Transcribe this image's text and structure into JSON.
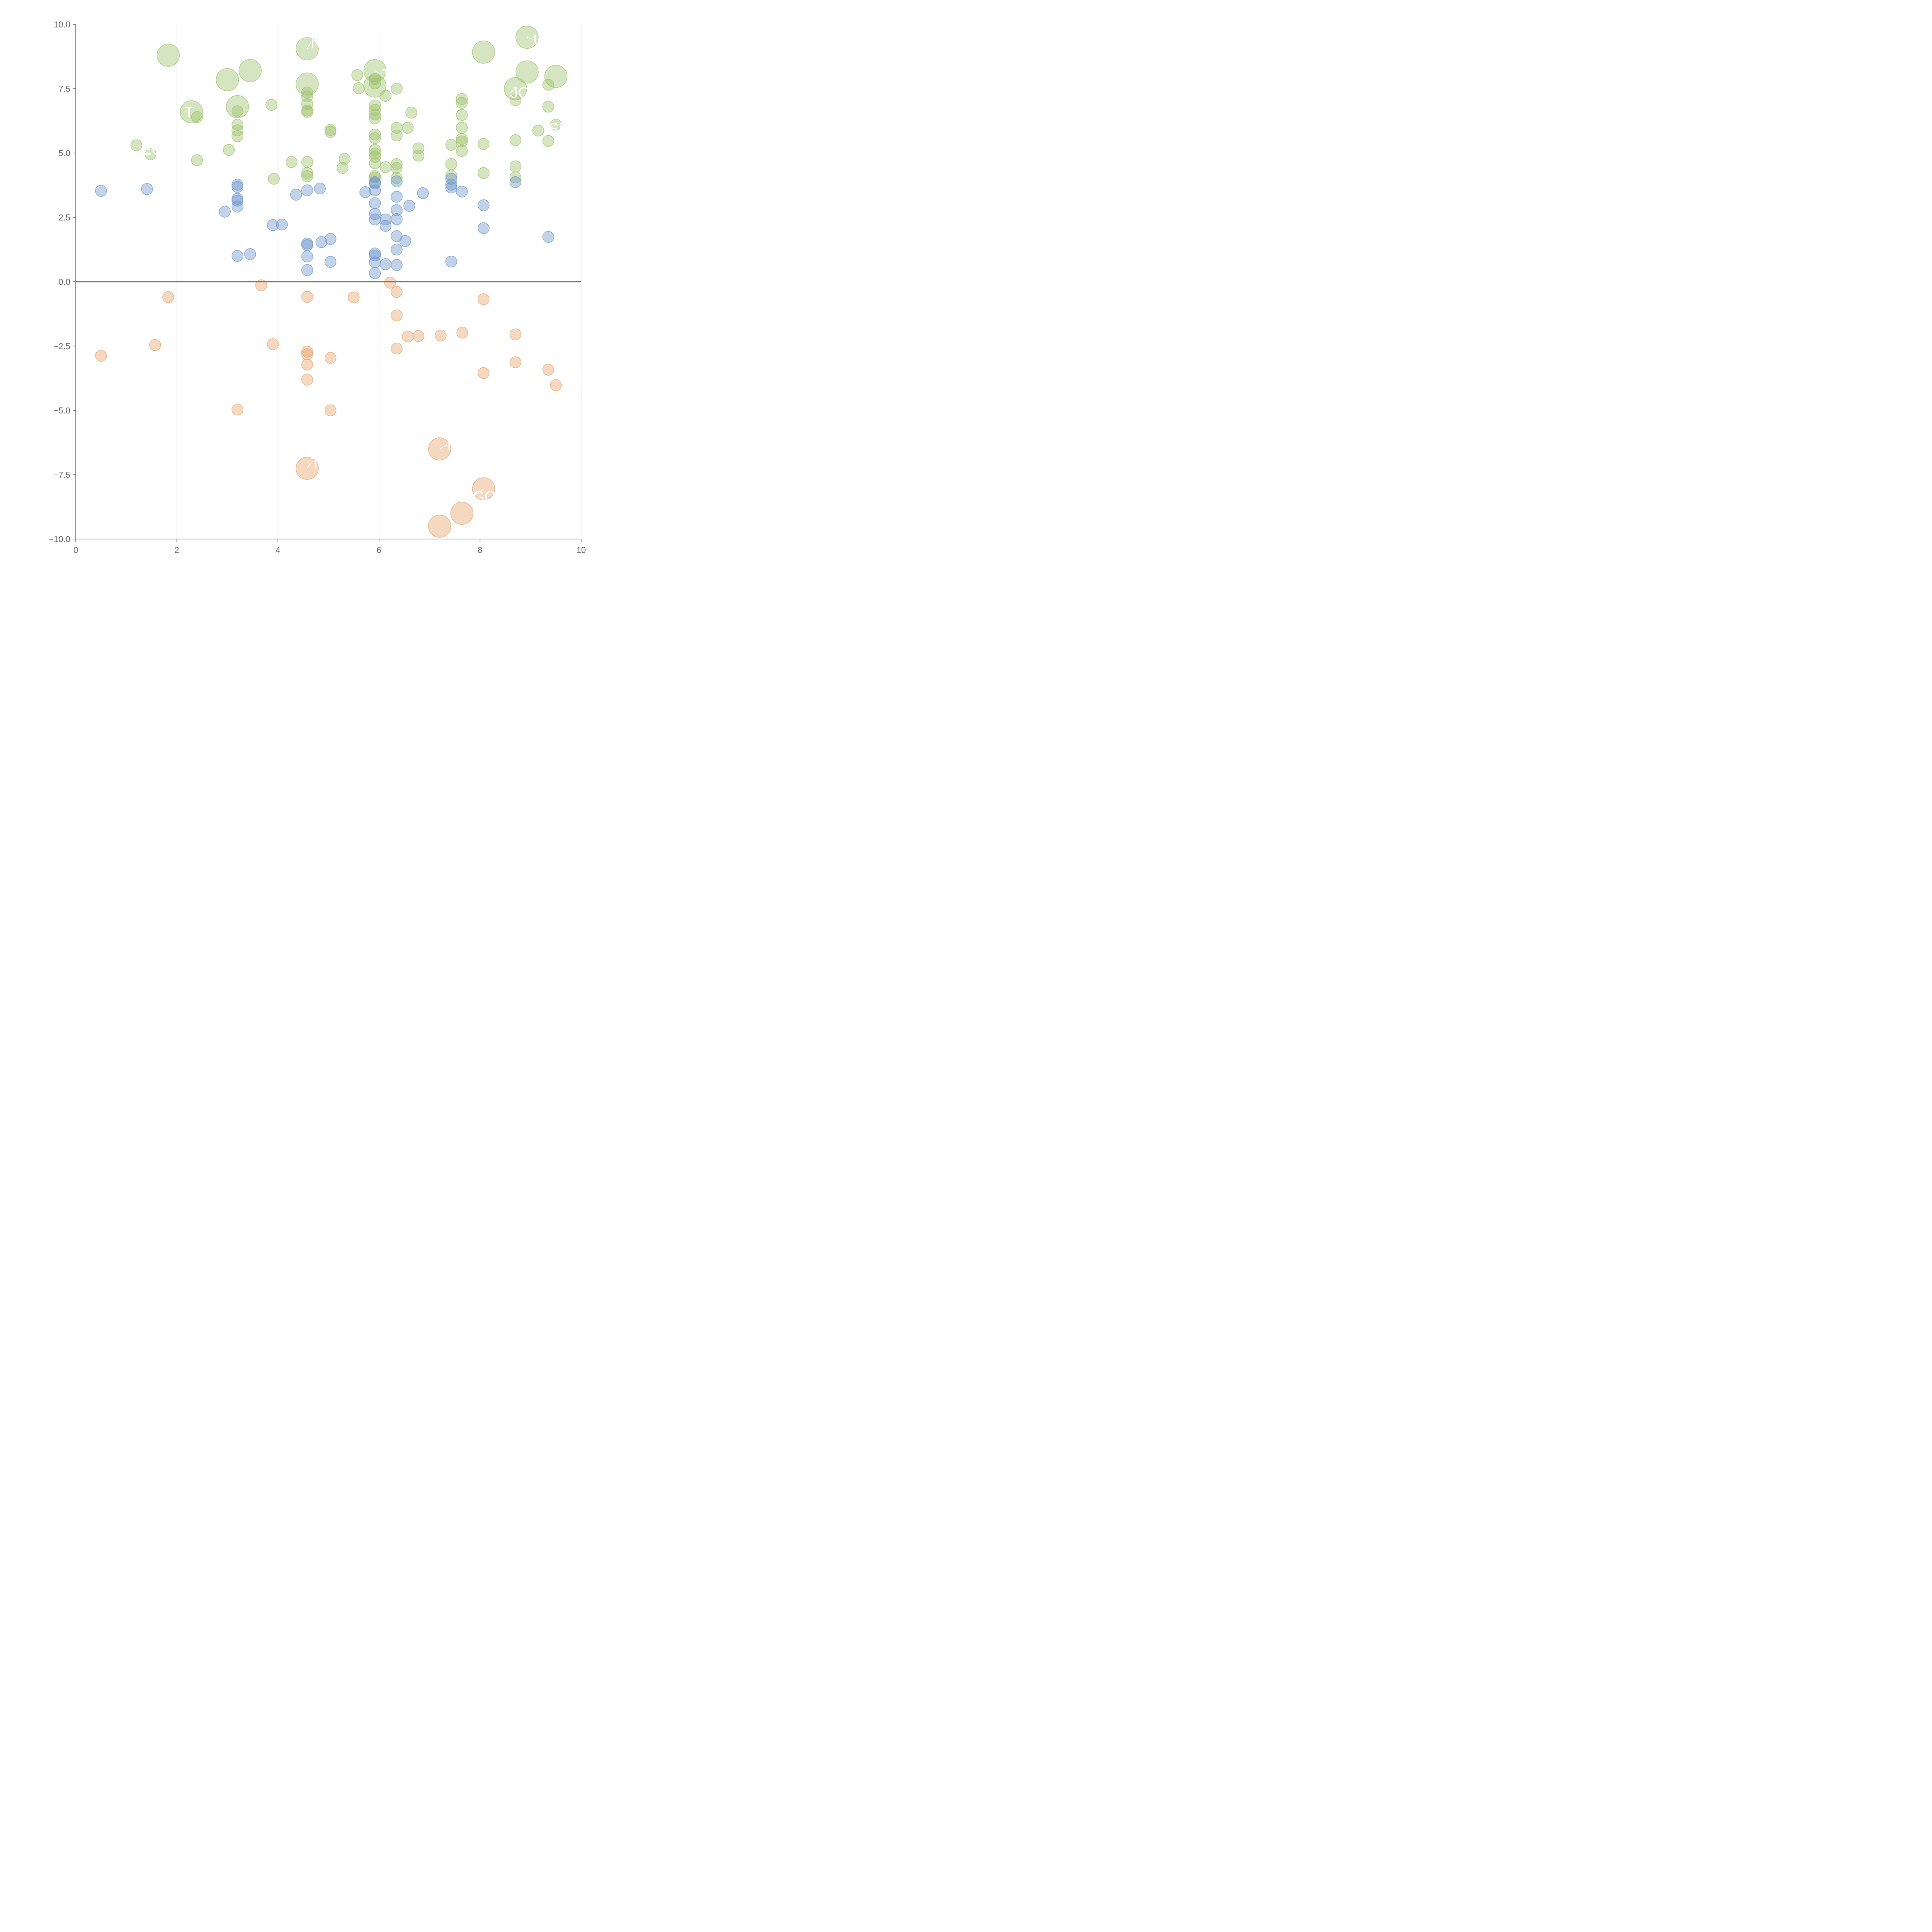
{
  "chart_data": {
    "type": "scatter",
    "title": "",
    "xlabel": "",
    "ylabel": "",
    "xlim": [
      0,
      10
    ],
    "ylim": [
      -10,
      10
    ],
    "x_ticks": [
      "0",
      "2",
      "4",
      "6",
      "8",
      "10"
    ],
    "y_ticks": [
      "10.0",
      "7.5",
      "5.0",
      "2.5",
      "0.0",
      "−2.5",
      "−5.0",
      "−7.5",
      "−10.0"
    ],
    "x_tick_values": [
      0,
      2,
      4,
      6,
      8,
      10
    ],
    "y_tick_values": [
      10,
      7.5,
      5,
      2.5,
      0,
      -2.5,
      -5,
      -7.5,
      -10
    ],
    "grid": {
      "vertical": true,
      "horizontal": false
    },
    "zero_line": true,
    "colors": {
      "green": "#9dc16b",
      "blue": "#6e95cb",
      "orange": "#e8a36a",
      "axis": "#666666",
      "grid": "#dddddd"
    },
    "series": [
      {
        "color": "#9dc16b",
        "points": [
          {
            "x": 1.83,
            "y": 8.8,
            "s": 2
          },
          {
            "x": 2.29,
            "y": 6.6,
            "s": 2
          },
          {
            "x": 3.0,
            "y": 7.85,
            "s": 2
          },
          {
            "x": 3.45,
            "y": 8.2,
            "s": 2
          },
          {
            "x": 3.2,
            "y": 6.8,
            "s": 2
          },
          {
            "x": 4.58,
            "y": 9.05,
            "s": 2
          },
          {
            "x": 4.58,
            "y": 7.68,
            "s": 2
          },
          {
            "x": 5.92,
            "y": 8.2,
            "s": 2
          },
          {
            "x": 5.92,
            "y": 7.6,
            "s": 2
          },
          {
            "x": 8.07,
            "y": 8.92,
            "s": 2
          },
          {
            "x": 8.93,
            "y": 9.5,
            "s": 2
          },
          {
            "x": 8.93,
            "y": 8.15,
            "s": 2
          },
          {
            "x": 8.7,
            "y": 7.5,
            "s": 2
          },
          {
            "x": 9.5,
            "y": 7.98,
            "s": 2
          },
          {
            "x": 1.2,
            "y": 5.3,
            "s": 1
          },
          {
            "x": 1.48,
            "y": 4.95,
            "s": 1
          },
          {
            "x": 2.4,
            "y": 6.4,
            "s": 1
          },
          {
            "x": 2.4,
            "y": 4.72,
            "s": 1
          },
          {
            "x": 3.03,
            "y": 5.12,
            "s": 1
          },
          {
            "x": 3.2,
            "y": 6.62,
            "s": 1
          },
          {
            "x": 3.2,
            "y": 6.1,
            "s": 1
          },
          {
            "x": 3.2,
            "y": 5.88,
            "s": 1
          },
          {
            "x": 3.2,
            "y": 5.65,
            "s": 1
          },
          {
            "x": 3.87,
            "y": 6.87,
            "s": 1
          },
          {
            "x": 3.92,
            "y": 4.0,
            "s": 1
          },
          {
            "x": 4.27,
            "y": 4.65,
            "s": 1
          },
          {
            "x": 4.58,
            "y": 7.35,
            "s": 1
          },
          {
            "x": 4.58,
            "y": 7.2,
            "s": 1
          },
          {
            "x": 4.58,
            "y": 6.9,
            "s": 1
          },
          {
            "x": 4.58,
            "y": 6.65,
            "s": 1
          },
          {
            "x": 4.58,
            "y": 6.6,
            "s": 1
          },
          {
            "x": 4.58,
            "y": 4.65,
            "s": 1
          },
          {
            "x": 4.58,
            "y": 4.22,
            "s": 1
          },
          {
            "x": 4.58,
            "y": 4.1,
            "s": 1
          },
          {
            "x": 5.04,
            "y": 5.9,
            "s": 1
          },
          {
            "x": 5.04,
            "y": 5.82,
            "s": 1
          },
          {
            "x": 5.28,
            "y": 4.42,
            "s": 1
          },
          {
            "x": 5.32,
            "y": 4.77,
            "s": 1
          },
          {
            "x": 5.57,
            "y": 8.03,
            "s": 1
          },
          {
            "x": 5.6,
            "y": 7.52,
            "s": 1
          },
          {
            "x": 5.92,
            "y": 7.88,
            "s": 1
          },
          {
            "x": 5.92,
            "y": 7.7,
            "s": 1
          },
          {
            "x": 5.92,
            "y": 6.85,
            "s": 1
          },
          {
            "x": 5.92,
            "y": 6.68,
            "s": 1
          },
          {
            "x": 5.92,
            "y": 6.5,
            "s": 1
          },
          {
            "x": 5.92,
            "y": 6.35,
            "s": 1
          },
          {
            "x": 5.92,
            "y": 5.72,
            "s": 1
          },
          {
            "x": 5.92,
            "y": 5.58,
            "s": 1
          },
          {
            "x": 5.92,
            "y": 5.12,
            "s": 1
          },
          {
            "x": 5.92,
            "y": 4.98,
            "s": 1
          },
          {
            "x": 5.92,
            "y": 4.85,
            "s": 1
          },
          {
            "x": 5.92,
            "y": 4.6,
            "s": 1
          },
          {
            "x": 5.92,
            "y": 4.1,
            "s": 1
          },
          {
            "x": 5.92,
            "y": 4.05,
            "s": 1
          },
          {
            "x": 6.13,
            "y": 7.22,
            "s": 1
          },
          {
            "x": 6.13,
            "y": 4.45,
            "s": 1
          },
          {
            "x": 6.35,
            "y": 7.5,
            "s": 1
          },
          {
            "x": 6.35,
            "y": 5.98,
            "s": 1
          },
          {
            "x": 6.35,
            "y": 5.68,
            "s": 1
          },
          {
            "x": 6.35,
            "y": 4.57,
            "s": 1
          },
          {
            "x": 6.35,
            "y": 4.42,
            "s": 1
          },
          {
            "x": 6.35,
            "y": 4.03,
            "s": 1
          },
          {
            "x": 6.57,
            "y": 5.98,
            "s": 1
          },
          {
            "x": 6.64,
            "y": 6.57,
            "s": 1
          },
          {
            "x": 6.78,
            "y": 5.18,
            "s": 1
          },
          {
            "x": 6.78,
            "y": 4.9,
            "s": 1
          },
          {
            "x": 7.43,
            "y": 5.32,
            "s": 1
          },
          {
            "x": 7.43,
            "y": 4.57,
            "s": 1
          },
          {
            "x": 7.43,
            "y": 4.12,
            "s": 1
          },
          {
            "x": 7.64,
            "y": 7.1,
            "s": 1
          },
          {
            "x": 7.64,
            "y": 6.95,
            "s": 1
          },
          {
            "x": 7.64,
            "y": 6.48,
            "s": 1
          },
          {
            "x": 7.64,
            "y": 5.98,
            "s": 1
          },
          {
            "x": 7.64,
            "y": 5.55,
            "s": 1
          },
          {
            "x": 7.64,
            "y": 5.45,
            "s": 1
          },
          {
            "x": 7.64,
            "y": 5.08,
            "s": 1
          },
          {
            "x": 8.07,
            "y": 5.35,
            "s": 1
          },
          {
            "x": 8.07,
            "y": 4.22,
            "s": 1
          },
          {
            "x": 8.7,
            "y": 7.05,
            "s": 1
          },
          {
            "x": 8.7,
            "y": 5.5,
            "s": 1
          },
          {
            "x": 8.7,
            "y": 4.48,
            "s": 1
          },
          {
            "x": 8.7,
            "y": 4.05,
            "s": 1
          },
          {
            "x": 9.15,
            "y": 5.87,
            "s": 1
          },
          {
            "x": 9.35,
            "y": 7.65,
            "s": 1
          },
          {
            "x": 9.35,
            "y": 6.8,
            "s": 1
          },
          {
            "x": 9.35,
            "y": 5.47,
            "s": 1
          },
          {
            "x": 9.5,
            "y": 6.1,
            "s": 1
          }
        ]
      },
      {
        "color": "#6e95cb",
        "points": [
          {
            "x": 0.5,
            "y": 3.53,
            "s": 1
          },
          {
            "x": 1.41,
            "y": 3.6,
            "s": 1
          },
          {
            "x": 2.95,
            "y": 2.72,
            "s": 1
          },
          {
            "x": 3.2,
            "y": 3.77,
            "s": 1
          },
          {
            "x": 3.2,
            "y": 3.68,
            "s": 1
          },
          {
            "x": 3.2,
            "y": 3.22,
            "s": 1
          },
          {
            "x": 3.2,
            "y": 3.15,
            "s": 1
          },
          {
            "x": 3.2,
            "y": 2.92,
            "s": 1
          },
          {
            "x": 3.2,
            "y": 1.0,
            "s": 1
          },
          {
            "x": 3.45,
            "y": 1.07,
            "s": 1
          },
          {
            "x": 3.9,
            "y": 2.2,
            "s": 1
          },
          {
            "x": 4.08,
            "y": 2.22,
            "s": 1
          },
          {
            "x": 4.36,
            "y": 3.38,
            "s": 1
          },
          {
            "x": 4.58,
            "y": 3.55,
            "s": 1
          },
          {
            "x": 4.58,
            "y": 1.48,
            "s": 1
          },
          {
            "x": 4.58,
            "y": 1.42,
            "s": 1
          },
          {
            "x": 4.58,
            "y": 0.98,
            "s": 1
          },
          {
            "x": 4.58,
            "y": 0.45,
            "s": 1
          },
          {
            "x": 4.83,
            "y": 3.62,
            "s": 1
          },
          {
            "x": 4.86,
            "y": 1.54,
            "s": 1
          },
          {
            "x": 5.04,
            "y": 1.66,
            "s": 1
          },
          {
            "x": 5.04,
            "y": 0.77,
            "s": 1
          },
          {
            "x": 5.73,
            "y": 3.48,
            "s": 1
          },
          {
            "x": 5.92,
            "y": 3.87,
            "s": 1
          },
          {
            "x": 5.92,
            "y": 3.82,
            "s": 1
          },
          {
            "x": 5.92,
            "y": 3.55,
            "s": 1
          },
          {
            "x": 5.92,
            "y": 3.05,
            "s": 1
          },
          {
            "x": 5.92,
            "y": 2.63,
            "s": 1
          },
          {
            "x": 5.92,
            "y": 2.42,
            "s": 1
          },
          {
            "x": 5.92,
            "y": 1.1,
            "s": 1
          },
          {
            "x": 5.92,
            "y": 1.02,
            "s": 1
          },
          {
            "x": 5.92,
            "y": 0.75,
            "s": 1
          },
          {
            "x": 5.92,
            "y": 0.33,
            "s": 1
          },
          {
            "x": 6.13,
            "y": 2.42,
            "s": 1
          },
          {
            "x": 6.13,
            "y": 2.17,
            "s": 1
          },
          {
            "x": 6.13,
            "y": 0.68,
            "s": 1
          },
          {
            "x": 6.35,
            "y": 3.9,
            "s": 1
          },
          {
            "x": 6.35,
            "y": 3.3,
            "s": 1
          },
          {
            "x": 6.35,
            "y": 2.78,
            "s": 1
          },
          {
            "x": 6.35,
            "y": 2.43,
            "s": 1
          },
          {
            "x": 6.35,
            "y": 1.77,
            "s": 1
          },
          {
            "x": 6.35,
            "y": 1.25,
            "s": 1
          },
          {
            "x": 6.35,
            "y": 0.65,
            "s": 1
          },
          {
            "x": 6.52,
            "y": 1.58,
            "s": 1
          },
          {
            "x": 6.6,
            "y": 2.95,
            "s": 1
          },
          {
            "x": 6.87,
            "y": 3.44,
            "s": 1
          },
          {
            "x": 7.43,
            "y": 4.0,
            "s": 1
          },
          {
            "x": 7.43,
            "y": 3.77,
            "s": 1
          },
          {
            "x": 7.43,
            "y": 3.66,
            "s": 1
          },
          {
            "x": 7.43,
            "y": 0.78,
            "s": 1
          },
          {
            "x": 7.64,
            "y": 3.5,
            "s": 1
          },
          {
            "x": 8.07,
            "y": 2.97,
            "s": 1
          },
          {
            "x": 8.07,
            "y": 2.08,
            "s": 1
          },
          {
            "x": 8.7,
            "y": 3.87,
            "s": 1
          },
          {
            "x": 9.35,
            "y": 1.74,
            "s": 1
          }
        ]
      },
      {
        "color": "#e8a36a",
        "points": [
          {
            "x": 0.5,
            "y": -2.88,
            "s": 1
          },
          {
            "x": 1.57,
            "y": -2.46,
            "s": 1
          },
          {
            "x": 1.83,
            "y": -0.6,
            "s": 1
          },
          {
            "x": 3.2,
            "y": -4.97,
            "s": 1
          },
          {
            "x": 3.67,
            "y": -0.14,
            "s": 1
          },
          {
            "x": 3.9,
            "y": -2.43,
            "s": 1
          },
          {
            "x": 4.58,
            "y": -0.59,
            "s": 1
          },
          {
            "x": 4.58,
            "y": -2.72,
            "s": 1
          },
          {
            "x": 4.58,
            "y": -2.82,
            "s": 1
          },
          {
            "x": 4.58,
            "y": -3.22,
            "s": 1
          },
          {
            "x": 4.58,
            "y": -3.81,
            "s": 1
          },
          {
            "x": 5.04,
            "y": -2.96,
            "s": 1
          },
          {
            "x": 5.04,
            "y": -5.0,
            "s": 1
          },
          {
            "x": 5.5,
            "y": -0.61,
            "s": 1
          },
          {
            "x": 6.22,
            "y": -0.04,
            "s": 1
          },
          {
            "x": 6.35,
            "y": -0.4,
            "s": 1
          },
          {
            "x": 6.35,
            "y": -1.31,
            "s": 1
          },
          {
            "x": 6.35,
            "y": -2.6,
            "s": 1
          },
          {
            "x": 6.57,
            "y": -2.13,
            "s": 1
          },
          {
            "x": 6.78,
            "y": -2.11,
            "s": 1
          },
          {
            "x": 7.22,
            "y": -2.09,
            "s": 1
          },
          {
            "x": 7.65,
            "y": -1.98,
            "s": 1
          },
          {
            "x": 8.07,
            "y": -0.68,
            "s": 1
          },
          {
            "x": 8.07,
            "y": -3.55,
            "s": 1
          },
          {
            "x": 8.7,
            "y": -2.05,
            "s": 1
          },
          {
            "x": 8.7,
            "y": -3.13,
            "s": 1
          },
          {
            "x": 9.35,
            "y": -3.42,
            "s": 1
          },
          {
            "x": 9.5,
            "y": -4.02,
            "s": 1
          },
          {
            "x": 4.58,
            "y": -7.25,
            "s": 2
          },
          {
            "x": 7.2,
            "y": -6.5,
            "s": 2
          },
          {
            "x": 8.07,
            "y": -8.05,
            "s": 2
          },
          {
            "x": 7.64,
            "y": -9.0,
            "s": 2
          },
          {
            "x": 7.2,
            "y": -9.5,
            "s": 2
          }
        ]
      }
    ],
    "annotations": [
      {
        "text": "N",
        "x": 4.58,
        "y": 9.05,
        "lx": 4.65,
        "ly": 9.3
      },
      {
        "text": "T",
        "x": 2.29,
        "y": 6.6,
        "lx": 2.15,
        "ly": 6.6
      },
      {
        "text": "EOF",
        "x": 1.48,
        "y": 4.95,
        "lx": 1.3,
        "ly": 5.15
      },
      {
        "text": "T",
        "x": 5.92,
        "y": 8.2,
        "lx": 6.05,
        "ly": 8.05
      },
      {
        "text": "JO",
        "x": 8.7,
        "y": 7.5,
        "lx": 8.6,
        "ly": 7.35
      },
      {
        "text": "U",
        "x": 8.93,
        "y": 9.5,
        "lx": 9.05,
        "ly": 9.4
      },
      {
        "text": "SI",
        "x": 9.5,
        "y": 6.1,
        "lx": 9.35,
        "ly": 5.95
      },
      {
        "text": "M",
        "x": 7.2,
        "y": -6.5,
        "lx": 7.35,
        "ly": -6.35
      },
      {
        "text": "T",
        "x": 4.58,
        "y": -7.25,
        "lx": 4.65,
        "ly": -7.05
      },
      {
        "text": "GO",
        "x": 8.07,
        "y": -8.05,
        "lx": 7.85,
        "ly": -8.35
      }
    ]
  }
}
